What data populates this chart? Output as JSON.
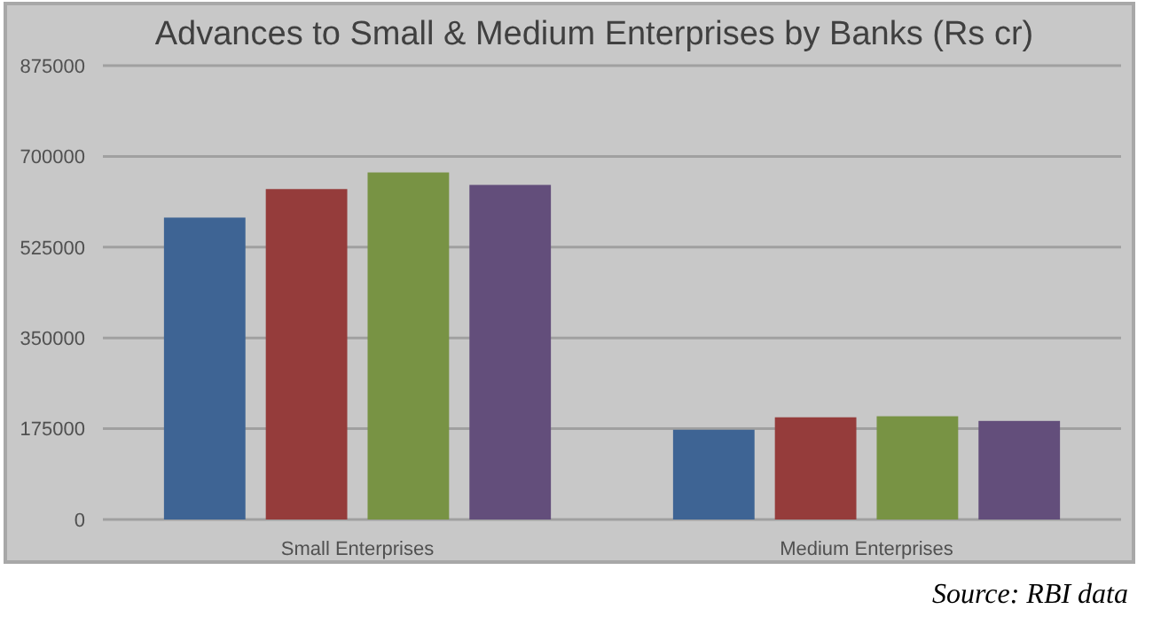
{
  "chart_data": {
    "type": "bar",
    "title": "Advances to Small & Medium Enterprises by Banks (Rs cr)",
    "categories": [
      "Small Enterprises",
      "Medium Enterprises"
    ],
    "series": [
      {
        "color": "#3e6494",
        "values": [
          582000,
          173000
        ]
      },
      {
        "color": "#953c3b",
        "values": [
          637000,
          197000
        ]
      },
      {
        "color": "#789344",
        "values": [
          669000,
          199000
        ]
      },
      {
        "color": "#634e7b",
        "values": [
          645000,
          190000
        ]
      }
    ],
    "ylim": [
      0,
      875000
    ],
    "yticks": [
      0,
      175000,
      350000,
      525000,
      700000,
      875000
    ],
    "grid": "y",
    "annotations": [
      "Source: RBI data"
    ]
  }
}
